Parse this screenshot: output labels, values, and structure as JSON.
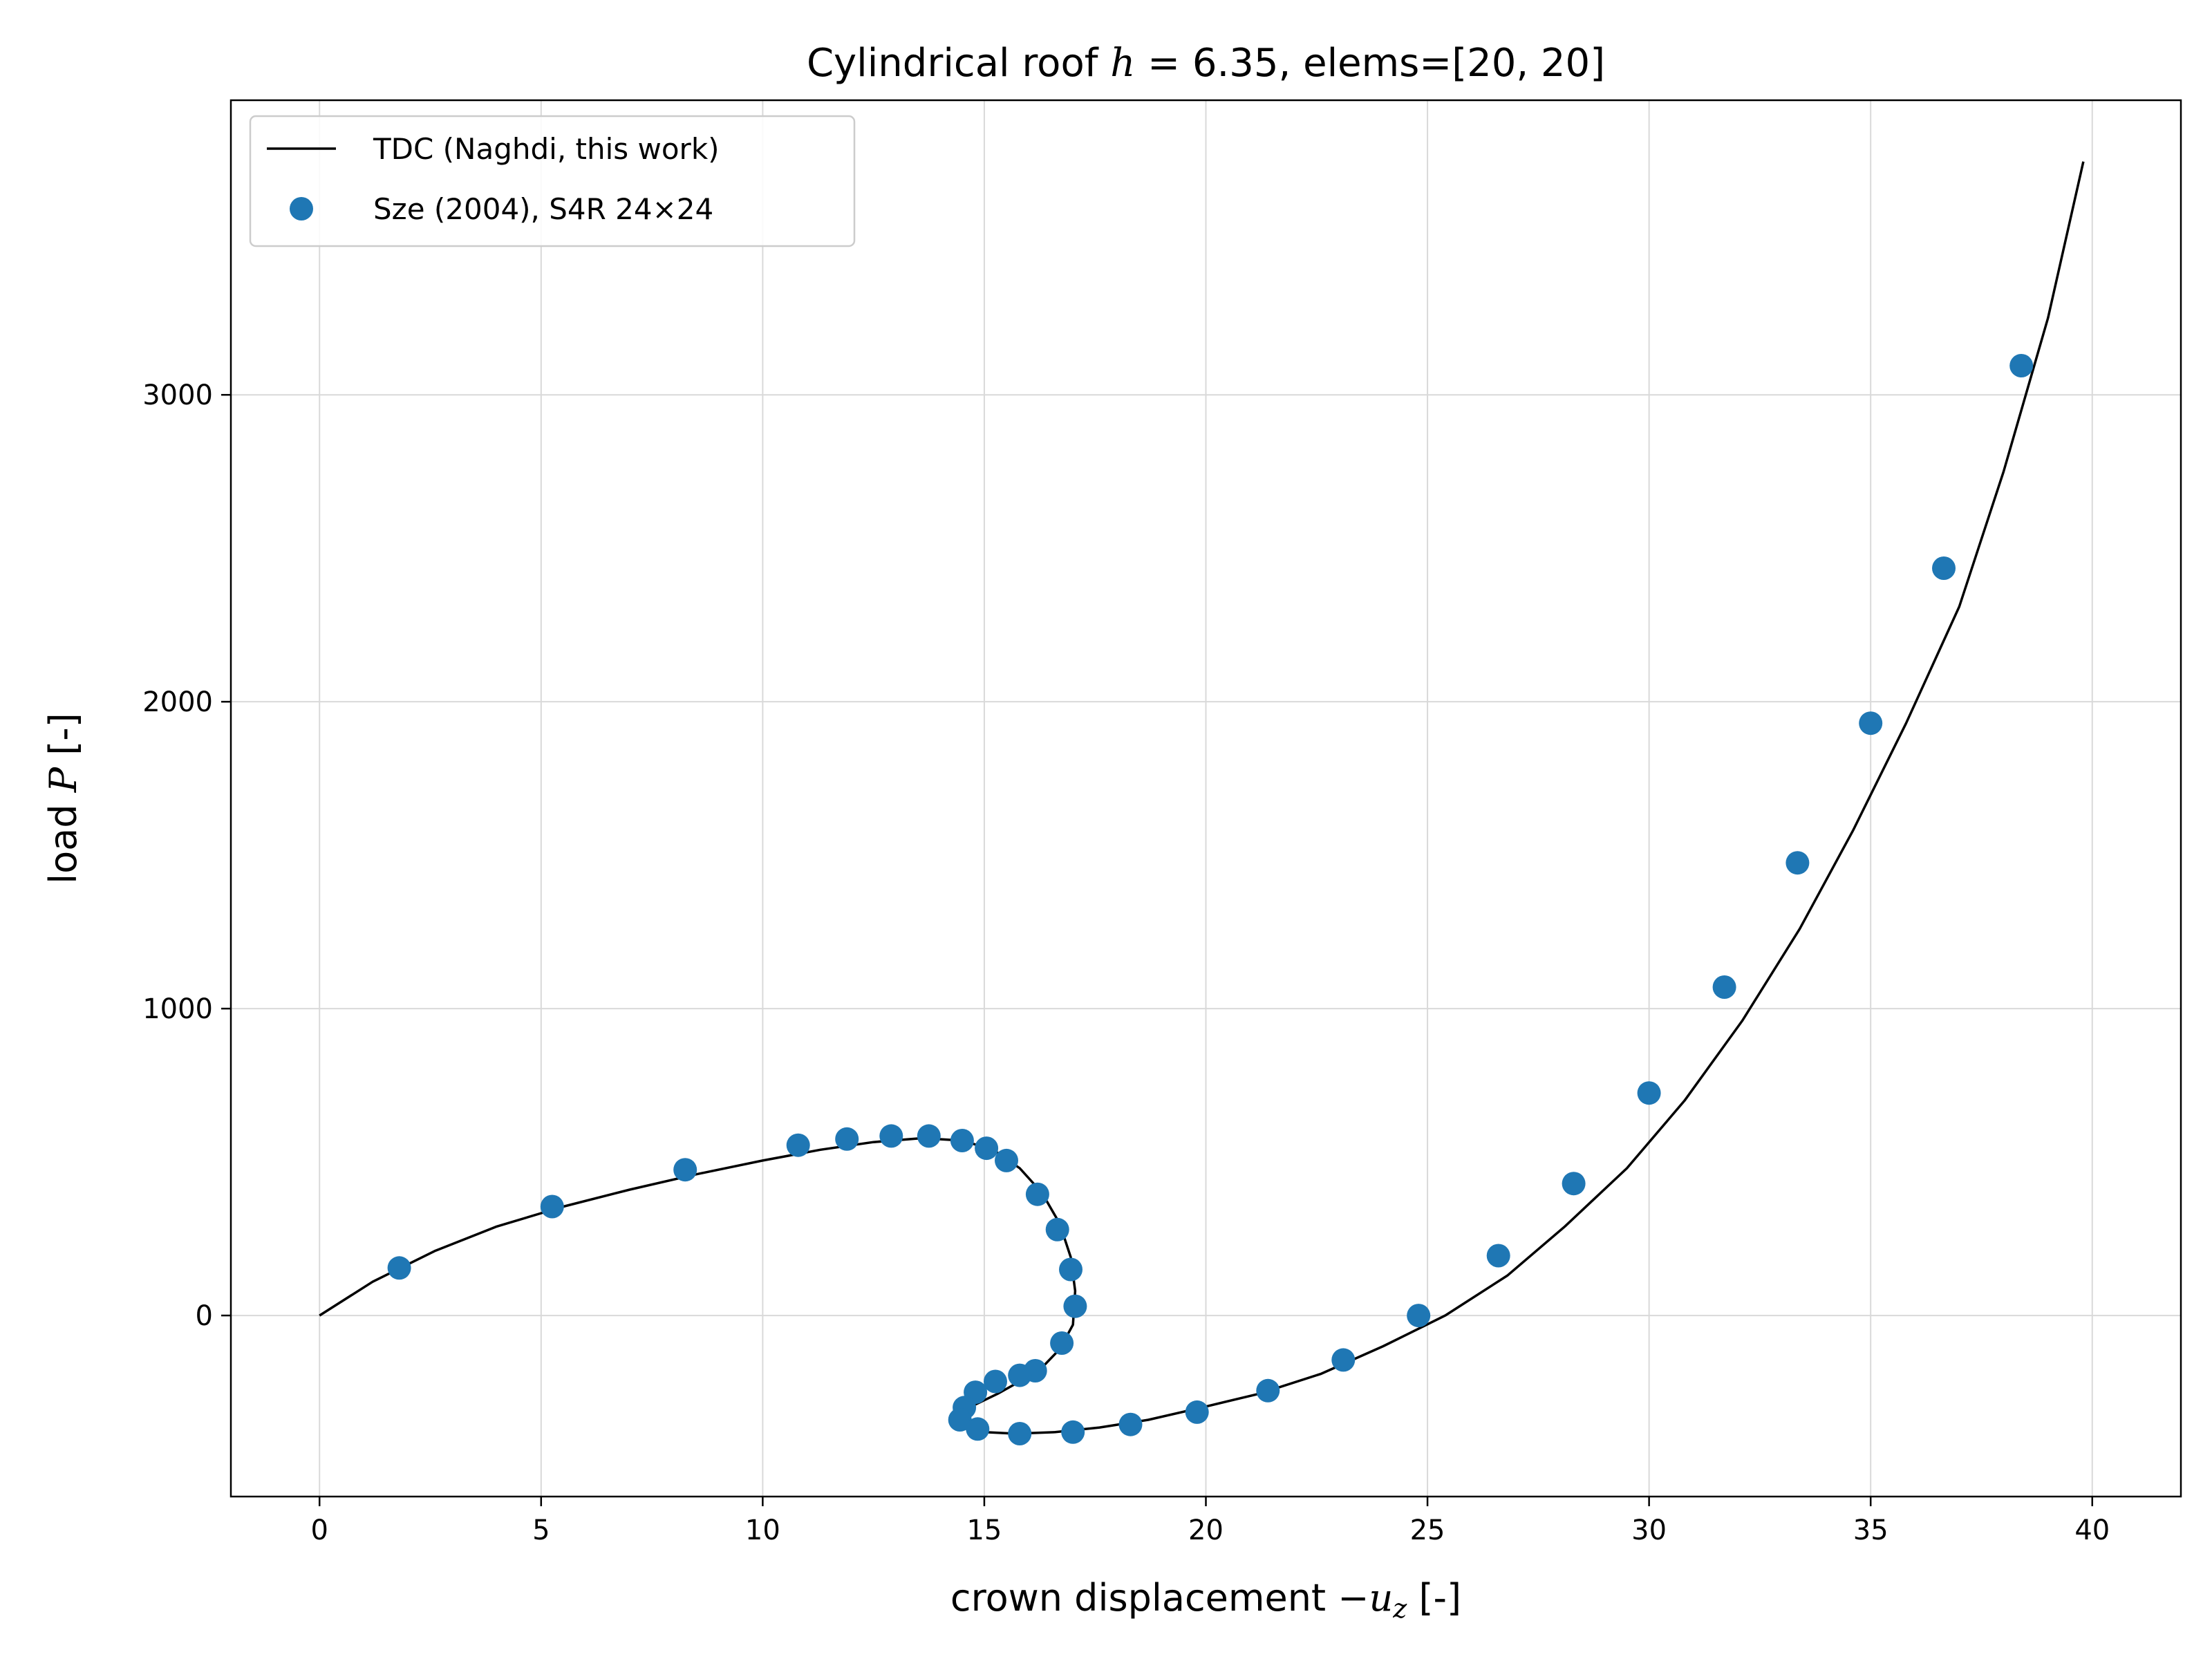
{
  "chart_data": {
    "type": "scatter",
    "title": {
      "prefix": "Cylindrical roof ",
      "math": "h",
      "suffix": " = 6.35, elems=[20, 20]"
    },
    "xlabel": {
      "prefix": "crown displacement −",
      "math": "u",
      "sub": "z",
      "suffix": " [-]"
    },
    "ylabel": {
      "prefix": "load ",
      "math": "P",
      "suffix": " [-]"
    },
    "xlim": [
      -2,
      42
    ],
    "ylim": [
      -590,
      3960
    ],
    "xticks": [
      0,
      5,
      10,
      15,
      20,
      25,
      30,
      35,
      40
    ],
    "xtick_labels": [
      "0",
      "5",
      "10",
      "15",
      "20",
      "25",
      "30",
      "35",
      "40"
    ],
    "yticks": [
      0,
      1000,
      2000,
      3000
    ],
    "ytick_labels": [
      "0",
      "1000",
      "2000",
      "3000"
    ],
    "grid": true,
    "legend_position": "upper-left",
    "series": [
      {
        "name": "TDC (Naghdi, this work)",
        "kind": "line",
        "color": "#000000",
        "x": [
          0,
          1.2,
          2.6,
          4.0,
          5.5,
          7.0,
          8.5,
          10.0,
          11.3,
          12.5,
          13.6,
          14.5,
          15.2,
          15.8,
          16.3,
          16.7,
          16.95,
          17.05,
          17.0,
          16.7,
          16.3,
          15.8,
          15.3,
          14.8,
          14.5,
          14.45,
          14.6,
          15.0,
          15.7,
          16.6,
          17.6,
          18.7,
          19.9,
          21.2,
          22.6,
          24.0,
          25.4,
          26.8,
          28.1,
          29.5,
          30.8,
          32.1,
          33.4,
          34.6,
          35.8,
          37.0,
          38.0,
          39.0,
          39.8
        ],
        "y": [
          0,
          110,
          210,
          290,
          355,
          410,
          460,
          505,
          540,
          565,
          578,
          570,
          540,
          480,
          400,
          300,
          190,
          80,
          -30,
          -110,
          -170,
          -215,
          -255,
          -290,
          -320,
          -350,
          -370,
          -380,
          -385,
          -380,
          -365,
          -340,
          -300,
          -255,
          -190,
          -100,
          0,
          130,
          290,
          480,
          700,
          960,
          1260,
          1580,
          1930,
          2310,
          2750,
          3250,
          3760
        ]
      },
      {
        "name": "Sze (2004), S4R 24×24",
        "kind": "markers",
        "color": "#1f77b4",
        "x": [
          1.8,
          5.25,
          8.25,
          10.8,
          11.9,
          12.9,
          13.75,
          14.5,
          15.05,
          15.5,
          16.2,
          16.65,
          16.95,
          17.05,
          16.75,
          16.15,
          15.8,
          15.25,
          14.8,
          14.55,
          14.45,
          14.85,
          15.8,
          17.0,
          18.3,
          19.8,
          21.4,
          23.1,
          24.8,
          26.6,
          28.3,
          30.0,
          31.7,
          33.35,
          35.0,
          36.65,
          38.4
        ],
        "y": [
          155,
          355,
          475,
          555,
          575,
          585,
          585,
          570,
          545,
          505,
          395,
          280,
          150,
          30,
          -90,
          -180,
          -195,
          -215,
          -250,
          -300,
          -340,
          -370,
          -385,
          -380,
          -355,
          -315,
          -245,
          -145,
          0,
          195,
          430,
          725,
          1070,
          1475,
          1930,
          2435,
          3095
        ]
      }
    ]
  }
}
